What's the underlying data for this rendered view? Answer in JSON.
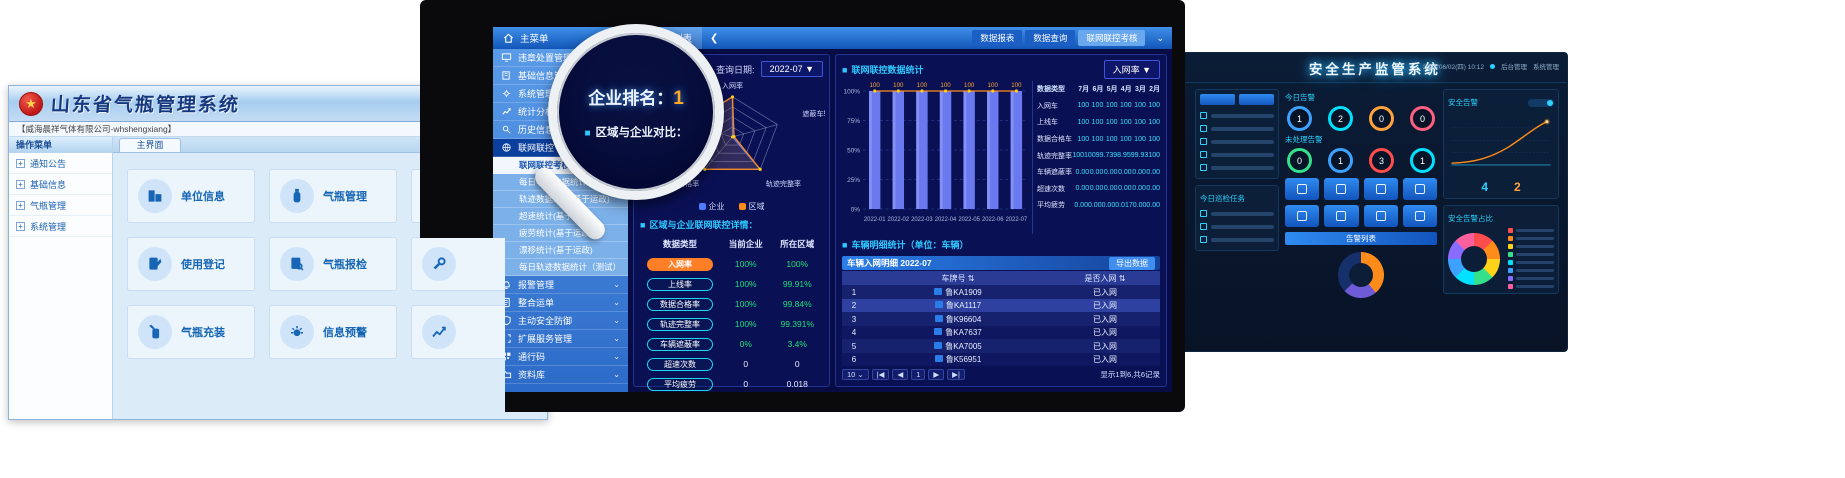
{
  "left_app": {
    "title": "山东省气瓶管理系统",
    "org": "【威海晨祥气体有限公司-whshengxiang】",
    "menu_header": "操作菜单",
    "menu_items": [
      "通知公告",
      "基础信息",
      "气瓶管理",
      "系统管理"
    ],
    "tab": "主界面",
    "cards": [
      {
        "label": "单位信息",
        "icon": "building"
      },
      {
        "label": "气瓶管理",
        "icon": "cylinder"
      },
      {
        "label": "",
        "icon": "person"
      },
      {
        "label": "使用登记",
        "icon": "register"
      },
      {
        "label": "气瓶报检",
        "icon": "inspect"
      },
      {
        "label": "",
        "icon": "wrench"
      },
      {
        "label": "气瓶充装",
        "icon": "fill"
      },
      {
        "label": "信息预警",
        "icon": "alert"
      },
      {
        "label": "",
        "icon": "chart"
      }
    ]
  },
  "center_app": {
    "topbar": {
      "home_label": "主菜单",
      "vehicle_tab": "车辆列表",
      "collapse": "❮",
      "tabs": [
        {
          "label": "数据报表",
          "active": false
        },
        {
          "label": "数据查询",
          "active": false
        },
        {
          "label": "联网联控考核",
          "active": true
        }
      ]
    },
    "sidebar": [
      {
        "label": "违章处置管理",
        "type": "main",
        "icon": "monitor"
      },
      {
        "label": "基础信息管理",
        "type": "main",
        "icon": "book"
      },
      {
        "label": "系统管理",
        "type": "main",
        "icon": "gear"
      },
      {
        "label": "统计分析",
        "type": "main",
        "icon": "chart"
      },
      {
        "label": "历史信息查询",
        "type": "main",
        "icon": "search"
      },
      {
        "label": "联网联控",
        "type": "main",
        "icon": "globe",
        "active": true
      },
      {
        "label": "联网联控考核",
        "type": "sub",
        "selected": true
      },
      {
        "label": "每日轨迹数据统计",
        "type": "sub"
      },
      {
        "label": "轨迹数据统计(基于运政)",
        "type": "sub"
      },
      {
        "label": "超速统计(基于运政)",
        "type": "sub"
      },
      {
        "label": "疲劳统计(基于运政)",
        "type": "sub"
      },
      {
        "label": "漂移统计(基于运政)",
        "type": "sub"
      },
      {
        "label": "每日轨迹数据统计（测试）",
        "type": "sub"
      },
      {
        "label": "报警管理",
        "type": "main",
        "icon": "bell"
      },
      {
        "label": "整合运单",
        "type": "main",
        "icon": "doc"
      },
      {
        "label": "主动安全防御",
        "type": "main",
        "icon": "shield"
      },
      {
        "label": "扩展服务管理",
        "type": "main",
        "icon": "expand"
      },
      {
        "label": "通行码",
        "type": "main",
        "icon": "qr"
      },
      {
        "label": "资料库",
        "type": "main",
        "icon": "folder"
      }
    ],
    "query": {
      "label": "查询日期:",
      "value": "2022-07 ▼"
    },
    "radar_legend": [
      {
        "name": "企业",
        "color": "#4f7bff"
      },
      {
        "name": "区域",
        "color": "#ff8c1a"
      }
    ],
    "details": {
      "title": "区域与企业联网联控详情：",
      "columns": [
        "数据类型",
        "当前企业",
        "所在区域"
      ],
      "rows": [
        {
          "metric": "入网率",
          "company": "100%",
          "region": "100%",
          "highlight": true,
          "green": true
        },
        {
          "metric": "上线率",
          "company": "100%",
          "region": "99.91%",
          "green": true
        },
        {
          "metric": "数据合格率",
          "company": "100%",
          "region": "99.84%",
          "green": true
        },
        {
          "metric": "轨迹完整率",
          "company": "100%",
          "region": "99.391%",
          "green": true
        },
        {
          "metric": "车辆遮蔽率",
          "company": "0%",
          "region": "3.4%",
          "green": true
        },
        {
          "metric": "超速次数",
          "company": "0",
          "region": "0",
          "green": false
        },
        {
          "metric": "平均疲劳",
          "company": "0",
          "region": "0.018",
          "green": false
        }
      ]
    },
    "stats": {
      "title": "联网联控数据统计",
      "metric_dropdown": "入网率  ▼",
      "table": {
        "columns": [
          "数据类型",
          "7月",
          "6月",
          "5月",
          "4月",
          "3月",
          "2月"
        ],
        "rows": [
          {
            "label": "入网车",
            "values": [
              "100",
              "100",
              "100",
              "100",
              "100",
              "100"
            ]
          },
          {
            "label": "上线车",
            "values": [
              "100",
              "100",
              "100",
              "100",
              "100",
              "100"
            ]
          },
          {
            "label": "数据合格车",
            "values": [
              "100",
              "100",
              "100",
              "100",
              "100",
              "100"
            ]
          },
          {
            "label": "轨迹完整率",
            "values": [
              "100",
              "100",
              "99.73",
              "98.95",
              "99.93",
              "100"
            ]
          },
          {
            "label": "车辆遮蔽率",
            "values": [
              "0.00",
              "0.00",
              "0.00",
              "0.00",
              "0.00",
              "0.00"
            ]
          },
          {
            "label": "超速次数",
            "values": [
              "0.00",
              "0.00",
              "0.00",
              "0.00",
              "0.00",
              "0.00"
            ]
          },
          {
            "label": "平均疲劳",
            "values": [
              "0.00",
              "0.00",
              "0.00",
              "0.017",
              "0.00",
              "0.00"
            ]
          }
        ]
      }
    },
    "vehicles": {
      "section_title": "车辆明细统计（单位：车辆）",
      "panel_title": "车辆入网明细  2022-07",
      "export_label": "导出数据",
      "columns": [
        "",
        "车牌号 ⇅",
        "是否入网 ⇅"
      ],
      "rows": [
        {
          "idx": "1",
          "plate": "鲁KA1909",
          "status": "已入网"
        },
        {
          "idx": "2",
          "plate": "鲁KA1117",
          "status": "已入网",
          "selected": true
        },
        {
          "idx": "3",
          "plate": "鲁K96604",
          "status": "已入网"
        },
        {
          "idx": "4",
          "plate": "鲁KA7637",
          "status": "已入网"
        },
        {
          "idx": "5",
          "plate": "鲁KA7005",
          "status": "已入网"
        },
        {
          "idx": "6",
          "plate": "鲁K56951",
          "status": "已入网"
        }
      ],
      "page_size": "10 ⌄",
      "pager": [
        "|◀",
        "◀",
        "1",
        "▶",
        "▶|"
      ],
      "footer": "显示1到6,共6记录"
    }
  },
  "magnifier": {
    "rank_label": "企业排名：",
    "rank_value": "1",
    "compare_label": "区域与企业对比："
  },
  "right_app": {
    "title": "安全生产监管系统",
    "time": "2022/06/02(四) 10:12",
    "user": "后台管理",
    "system": "系统管理",
    "today_label": "今日告警",
    "pending_label": "未处理告警",
    "alarm_list_label": "告警列表",
    "patrol_label": "今日巡检任务",
    "safety_label": "安全告警",
    "pie_label": "安全告警占比",
    "rings_today": [
      {
        "value": "1",
        "color": "#3da1ff"
      },
      {
        "value": "2",
        "color": "#00e0ff"
      },
      {
        "value": "0",
        "color": "#ffa23e"
      },
      {
        "value": "0",
        "color": "#ff5f7e"
      }
    ],
    "rings_pending": [
      {
        "value": "0",
        "color": "#35e08a"
      },
      {
        "value": "1",
        "color": "#3da1ff"
      },
      {
        "value": "3",
        "color": "#ff4d4d"
      },
      {
        "value": "1",
        "color": "#00e0ff"
      }
    ],
    "stat_values": [
      "4",
      "2"
    ],
    "legend_colors": [
      "#ff4d4d",
      "#ff8c1a",
      "#ffd21a",
      "#35e08a",
      "#00e0ff",
      "#3da1ff",
      "#8a6bff",
      "#ff5f9e"
    ]
  },
  "chart_data": [
    {
      "type": "radar",
      "title": "区域与企业对比",
      "categories": [
        "入网率",
        "遮蔽车辆率",
        "轨迹完整率",
        "数据合格率",
        "上线率"
      ],
      "series": [
        {
          "name": "企业",
          "color": "#4f7bff",
          "values": [
            100,
            0,
            100,
            100,
            100
          ]
        },
        {
          "name": "区域",
          "color": "#ff8c1a",
          "values": [
            100,
            3.4,
            99.391,
            99.84,
            99.91
          ]
        }
      ],
      "max": 100,
      "legend_position": "bottom",
      "grid": true
    },
    {
      "type": "bar",
      "title": "联网联控数据统计",
      "categories": [
        "2022-01",
        "2022-02",
        "2022-03",
        "2022-04",
        "2022-05",
        "2022-06",
        "2022-07"
      ],
      "series": [
        {
          "name": "入网率",
          "values": [
            100,
            100,
            100,
            100,
            100,
            100,
            100
          ]
        }
      ],
      "ylabels": [
        "100%",
        "75%",
        "50%",
        "25%",
        "0%"
      ],
      "ylim": [
        0,
        100
      ],
      "unit": "%",
      "overlay_line": true,
      "grid": true
    },
    {
      "type": "line",
      "title": "安全告警趋势",
      "x": [
        1,
        2,
        3,
        4,
        5,
        6,
        7,
        8
      ],
      "values": [
        4,
        5,
        7,
        12,
        22,
        42,
        75,
        95
      ],
      "ylim": [
        0,
        100
      ],
      "grid": true
    },
    {
      "type": "pie",
      "title": "安全告警占比",
      "values": [
        12.5,
        12.5,
        12.5,
        12.5,
        12.5,
        12.5,
        12.5,
        12.5
      ]
    }
  ]
}
